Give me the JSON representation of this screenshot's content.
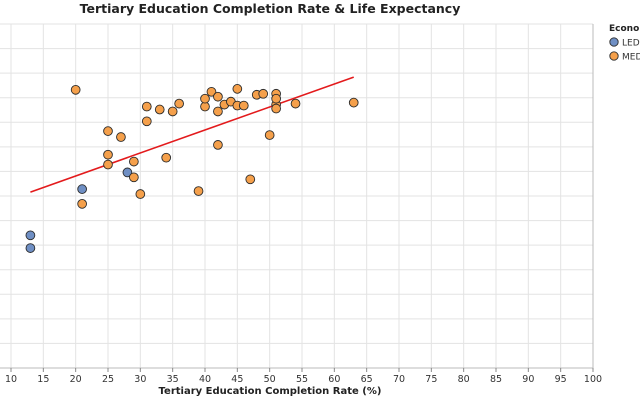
{
  "chart_data": {
    "type": "scatter",
    "title": "Tertiary Education Completion Rate & Life Expectancy",
    "xlabel": "Tertiary Education Completion Rate (%)",
    "ylabel": "",
    "xlim": [
      10,
      100
    ],
    "xticks": [
      10,
      15,
      20,
      25,
      30,
      35,
      40,
      45,
      50,
      55,
      60,
      65,
      70,
      75,
      80,
      85,
      90,
      95,
      100
    ],
    "ylim": [
      50,
      85
    ],
    "ytick_step": 2.5,
    "grid": true,
    "legend": {
      "title": "Econom",
      "position": "top-right",
      "entries": [
        {
          "label": "LEDC",
          "color": "#6f8fc4"
        },
        {
          "label": "MED",
          "color": "#f5a04b"
        }
      ]
    },
    "series": [
      {
        "name": "LEDC",
        "color": "#6f8fc4",
        "points": [
          [
            13,
            63.5
          ],
          [
            13,
            62.2
          ],
          [
            21,
            68.2
          ],
          [
            28,
            69.9
          ]
        ]
      },
      {
        "name": "MED",
        "color": "#f5a04b",
        "points": [
          [
            20,
            78.3
          ],
          [
            21,
            66.7
          ],
          [
            25,
            71.7
          ],
          [
            25,
            70.7
          ],
          [
            25,
            74.1
          ],
          [
            27,
            73.5
          ],
          [
            29,
            71.0
          ],
          [
            29,
            69.4
          ],
          [
            30,
            67.7
          ],
          [
            31,
            75.1
          ],
          [
            31,
            76.6
          ],
          [
            33,
            76.3
          ],
          [
            34,
            71.4
          ],
          [
            35,
            76.1
          ],
          [
            36,
            76.9
          ],
          [
            39,
            68.0
          ],
          [
            40,
            76.6
          ],
          [
            40,
            77.4
          ],
          [
            41,
            78.1
          ],
          [
            42,
            77.6
          ],
          [
            42,
            76.1
          ],
          [
            42,
            72.7
          ],
          [
            43,
            76.8
          ],
          [
            44,
            77.1
          ],
          [
            45,
            78.4
          ],
          [
            45,
            76.7
          ],
          [
            46,
            76.7
          ],
          [
            47,
            69.2
          ],
          [
            48,
            77.8
          ],
          [
            49,
            77.9
          ],
          [
            50,
            73.7
          ],
          [
            51,
            77.9
          ],
          [
            51,
            76.8
          ],
          [
            51,
            76.4
          ],
          [
            51,
            77.4
          ],
          [
            54,
            76.9
          ],
          [
            63,
            77.0
          ]
        ]
      }
    ],
    "trendline": {
      "color": "#e31a1c",
      "x": [
        13,
        63
      ],
      "y": [
        67.9,
        79.6
      ]
    }
  }
}
